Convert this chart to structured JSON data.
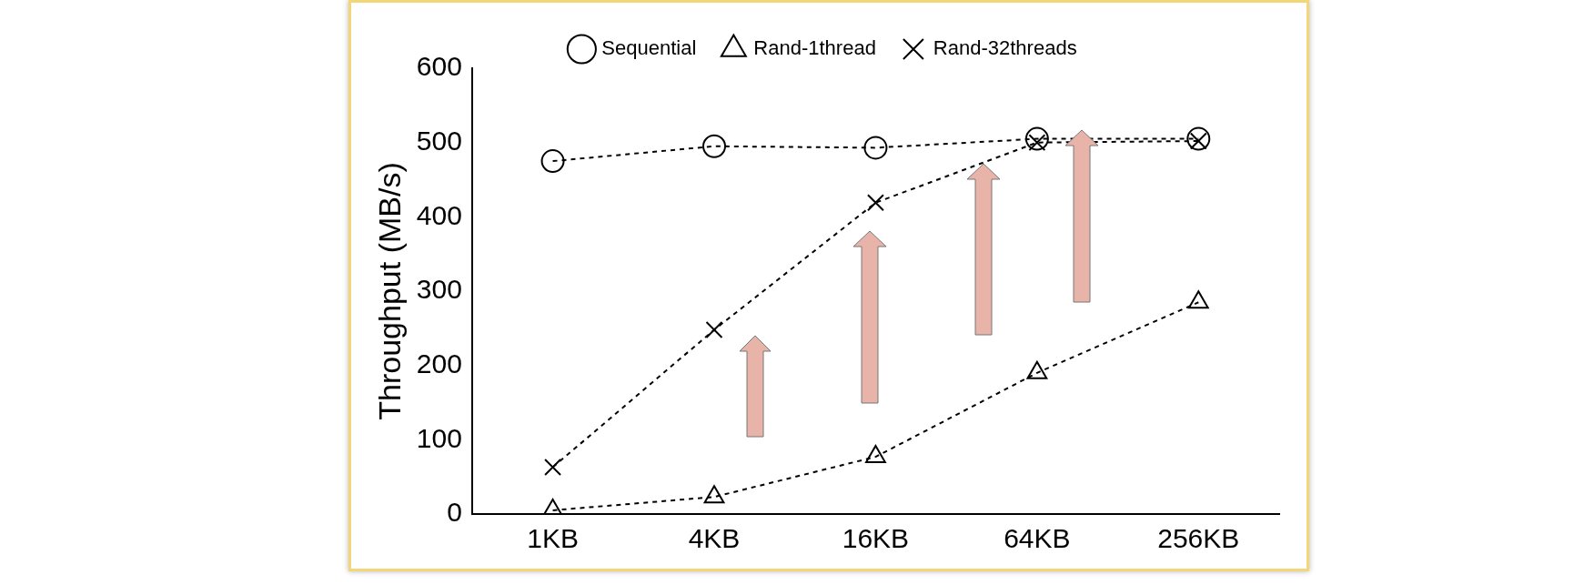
{
  "chart_data": {
    "type": "line",
    "ylabel": "Throughput (MB/s)",
    "categories": [
      "1KB",
      "4KB",
      "16KB",
      "64KB",
      "256KB"
    ],
    "series": [
      {
        "name": "Sequential",
        "color": "#000000",
        "marker": "circle",
        "values": [
          475,
          495,
          493,
          505,
          505
        ]
      },
      {
        "name": "Rand-1thread",
        "color": "#000000",
        "marker": "triangle",
        "values": [
          5,
          23,
          77,
          190,
          285
        ]
      },
      {
        "name": "Rand-32threads",
        "color": "#000000",
        "marker": "cross",
        "values": [
          63,
          248,
          419,
          500,
          502
        ]
      }
    ],
    "ylim": [
      0,
      600
    ],
    "yticks": [
      0,
      100,
      200,
      300,
      400,
      500,
      600
    ],
    "grid": false,
    "legend": "top",
    "line_style": "dashed"
  }
}
